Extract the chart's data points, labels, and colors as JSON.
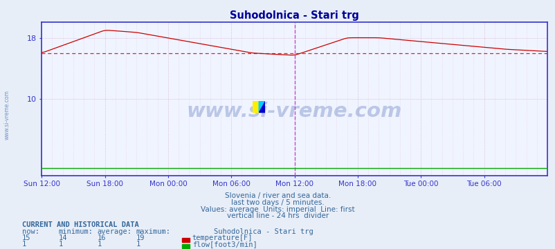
{
  "title": "Suhodolnica - Stari trg",
  "bg_color": "#e8eef8",
  "plot_bg_color": "#f0f4ff",
  "grid_color": "#cc99bb",
  "axis_color": "#3333cc",
  "title_color": "#000099",
  "label_color": "#3366aa",
  "temp_color": "#cc0000",
  "flow_color": "#00aa00",
  "avg_line_color": "#cc0000",
  "vline_color": "#cc44cc",
  "ylim": [
    0,
    20
  ],
  "yticks": [
    10,
    18
  ],
  "xlabel_ticks": [
    "Sun 12:00",
    "Sun 18:00",
    "Mon 00:00",
    "Mon 06:00",
    "Mon 12:00",
    "Mon 18:00",
    "Tue 00:00",
    "Tue 06:00"
  ],
  "n_points": 577,
  "avg_temp": 16,
  "watermark_text": "www.si-vreme.com",
  "watermark_color": "#3355aa",
  "watermark_alpha": 0.28,
  "subtitle1": "Slovenia / river and sea data.",
  "subtitle2": "last two days / 5 minutes.",
  "subtitle3": "Values: average  Units: imperial  Line: first",
  "subtitle4": "vertical line - 24 hrs  divider",
  "sub_color": "#336699",
  "legend_title": "Suhodolnica - Stari trg",
  "legend_temp_label": "temperature[F]",
  "legend_flow_label": "flow[foot3/min]",
  "table_title": "CURRENT AND HISTORICAL DATA",
  "table_headers": [
    "now:",
    "minimum:",
    "average:",
    "maximum:"
  ],
  "table_temp_vals": [
    "15",
    "14",
    "16",
    "19"
  ],
  "table_flow_vals": [
    "1",
    "1",
    "1",
    "1"
  ],
  "table_color": "#336699",
  "table_title_color": "#336699"
}
